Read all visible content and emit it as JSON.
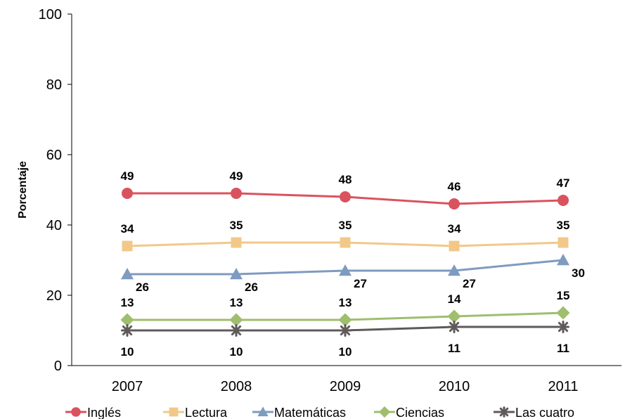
{
  "chart_data": {
    "type": "line",
    "title": "",
    "xlabel": "",
    "ylabel": "Porcentaje",
    "categories": [
      "2007",
      "2008",
      "2009",
      "2010",
      "2011"
    ],
    "ylim": [
      0,
      100
    ],
    "yticks": [
      "0",
      "20",
      "40",
      "60",
      "80",
      "100"
    ],
    "grid": false,
    "legend": "bottom",
    "series": [
      {
        "name": "Inglés",
        "values": [
          49,
          49,
          48,
          46,
          47
        ],
        "color": "#D9535F",
        "marker": "circle",
        "label_position": "above"
      },
      {
        "name": "Lectura",
        "values": [
          34,
          35,
          35,
          34,
          35
        ],
        "color": "#F2C889",
        "marker": "square",
        "label_position": "above"
      },
      {
        "name": "Matemáticas",
        "values": [
          26,
          26,
          27,
          27,
          30
        ],
        "color": "#7E9BC0",
        "marker": "triangle",
        "label_position": "below-right"
      },
      {
        "name": "Ciencias",
        "values": [
          13,
          13,
          13,
          14,
          15
        ],
        "color": "#9FBE6E",
        "marker": "diamond",
        "label_position": "above"
      },
      {
        "name": "Las cuatro",
        "values": [
          10,
          10,
          10,
          11,
          11
        ],
        "color": "#5F5A5A",
        "marker": "star",
        "label_position": "below"
      }
    ]
  }
}
